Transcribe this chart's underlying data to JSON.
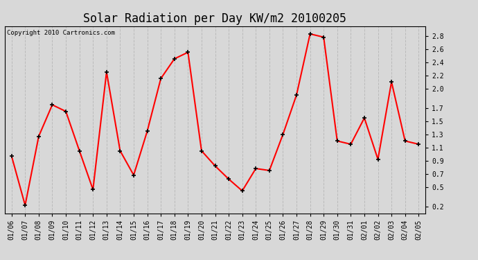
{
  "title": "Solar Radiation per Day KW/m2 20100205",
  "copyright": "Copyright 2010 Cartronics.com",
  "x_labels": [
    "01/06",
    "01/07",
    "01/08",
    "01/09",
    "01/10",
    "01/11",
    "01/12",
    "01/13",
    "01/14",
    "01/15",
    "01/16",
    "01/17",
    "01/18",
    "01/19",
    "01/20",
    "01/21",
    "01/22",
    "01/23",
    "01/24",
    "01/25",
    "01/26",
    "01/27",
    "01/28",
    "01/29",
    "01/30",
    "01/31",
    "02/01",
    "02/02",
    "02/03",
    "02/04",
    "02/05"
  ],
  "y_values": [
    0.97,
    0.22,
    1.27,
    1.75,
    1.65,
    1.05,
    0.46,
    2.25,
    1.05,
    0.68,
    1.35,
    2.15,
    2.45,
    2.55,
    1.05,
    0.82,
    0.62,
    0.44,
    0.78,
    0.75,
    1.3,
    1.9,
    2.83,
    2.78,
    1.2,
    1.15,
    1.55,
    0.92,
    2.1,
    1.2,
    1.15
  ],
  "y_ticks": [
    0.2,
    0.5,
    0.7,
    0.9,
    1.1,
    1.3,
    1.5,
    1.7,
    2.0,
    2.2,
    2.4,
    2.6,
    2.8
  ],
  "ylim": [
    0.1,
    2.95
  ],
  "line_color": "red",
  "marker": "+",
  "marker_color": "black",
  "marker_size": 5,
  "marker_linewidth": 1.2,
  "line_width": 1.5,
  "background_color": "#d8d8d8",
  "grid_color": "#bbbbbb",
  "title_fontsize": 12,
  "tick_fontsize": 7,
  "copyright_fontsize": 6.5
}
